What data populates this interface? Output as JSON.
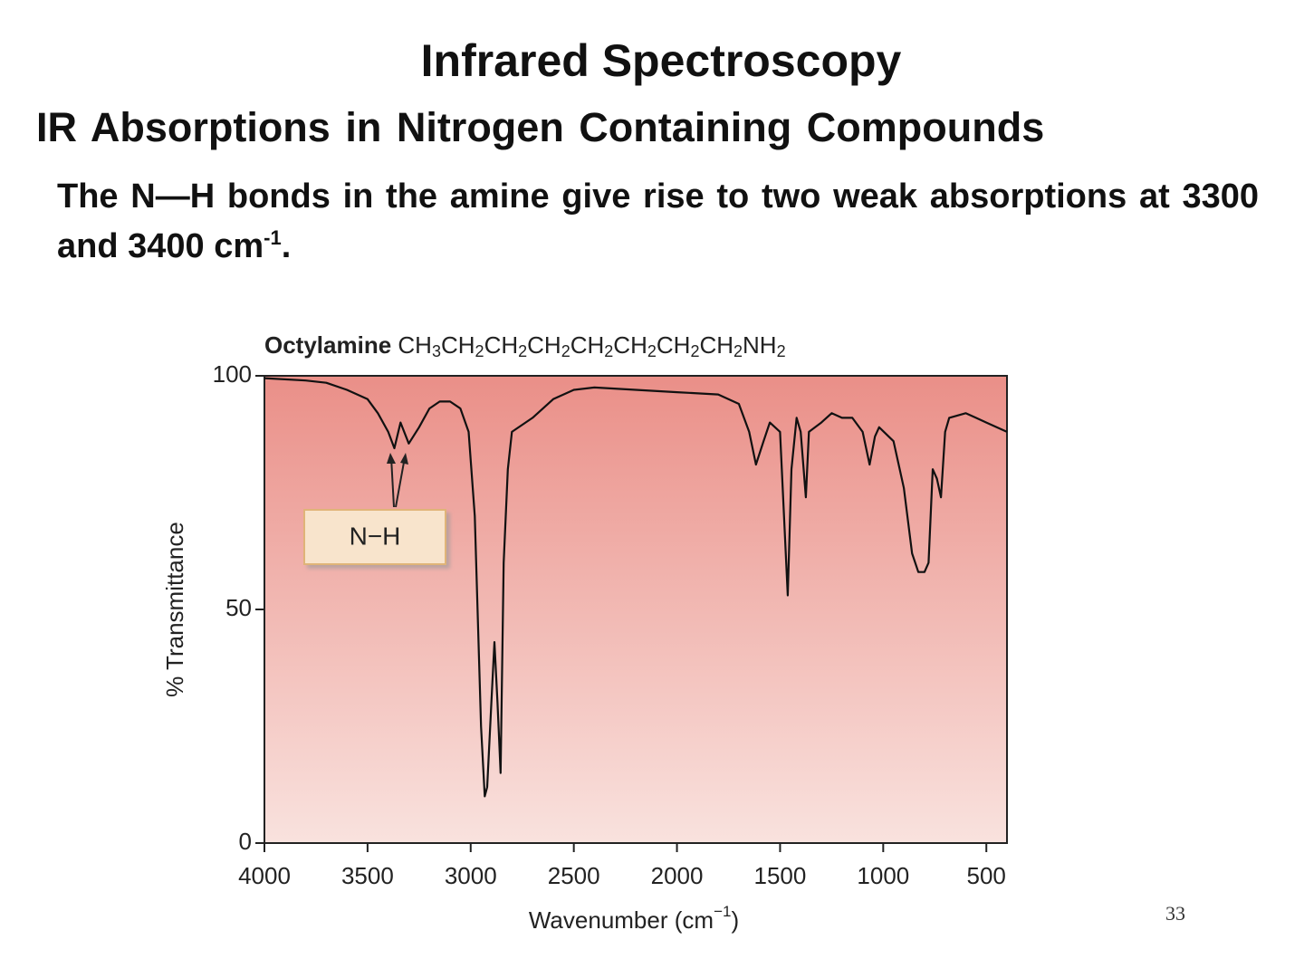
{
  "slide": {
    "title": "Infrared Spectroscopy",
    "subtitle": "IR Absorptions in Nitrogen Containing Compounds",
    "body_text": "The N—H bonds in the amine give rise to two weak absorptions at 3300 and 3400 cm",
    "body_superscript": "-1",
    "body_end": ".",
    "page_number": "33"
  },
  "chart_data": {
    "type": "line",
    "compound": "Octylamine",
    "formula": [
      {
        "atoms": "CH",
        "sub": "3"
      },
      {
        "atoms": "CH",
        "sub": "2"
      },
      {
        "atoms": "CH",
        "sub": "2"
      },
      {
        "atoms": "CH",
        "sub": "2"
      },
      {
        "atoms": "CH",
        "sub": "2"
      },
      {
        "atoms": "CH",
        "sub": "2"
      },
      {
        "atoms": "CH",
        "sub": "2"
      },
      {
        "atoms": "CH",
        "sub": "2"
      },
      {
        "atoms": "NH",
        "sub": "2"
      }
    ],
    "xlabel": "Wavenumber (cm",
    "xlabel_superscript": "−1",
    "xlabel_end": ")",
    "ylabel": "% Transmittance",
    "annotation": "N−H",
    "color": "#111111",
    "xlim": [
      4000,
      400
    ],
    "ylim": [
      0,
      100
    ],
    "xticks": [
      4000,
      3500,
      3000,
      2500,
      2000,
      1500,
      1000,
      500
    ],
    "yticks": [
      0,
      50,
      100
    ],
    "x": [
      4000,
      3800,
      3700,
      3600,
      3500,
      3450,
      3400,
      3370,
      3340,
      3300,
      3250,
      3200,
      3150,
      3100,
      3050,
      3010,
      2980,
      2960,
      2950,
      2932,
      2920,
      2900,
      2885,
      2870,
      2855,
      2840,
      2820,
      2800,
      2700,
      2600,
      2500,
      2400,
      2200,
      2000,
      1800,
      1700,
      1650,
      1617,
      1580,
      1550,
      1500,
      1463,
      1445,
      1420,
      1400,
      1375,
      1360,
      1300,
      1250,
      1200,
      1150,
      1100,
      1066,
      1040,
      1020,
      950,
      900,
      860,
      830,
      800,
      780,
      760,
      740,
      720,
      700,
      680,
      600,
      550,
      500,
      450,
      400
    ],
    "values": [
      99.5,
      99,
      98.5,
      97,
      95,
      92,
      88,
      84.5,
      90,
      85.5,
      89,
      93,
      94.5,
      94.5,
      93,
      88,
      70,
      40,
      25,
      10,
      12,
      30,
      43,
      30,
      15,
      60,
      80,
      88,
      91,
      95,
      97,
      97.5,
      97,
      96.5,
      96,
      94,
      88,
      81,
      86,
      90,
      88,
      53,
      80,
      91,
      88,
      74,
      88,
      90,
      92,
      91,
      91,
      88,
      81,
      87,
      89,
      86,
      76,
      62,
      58,
      58,
      60,
      80,
      78,
      74,
      88,
      91,
      92,
      91,
      90,
      89,
      88
    ]
  }
}
